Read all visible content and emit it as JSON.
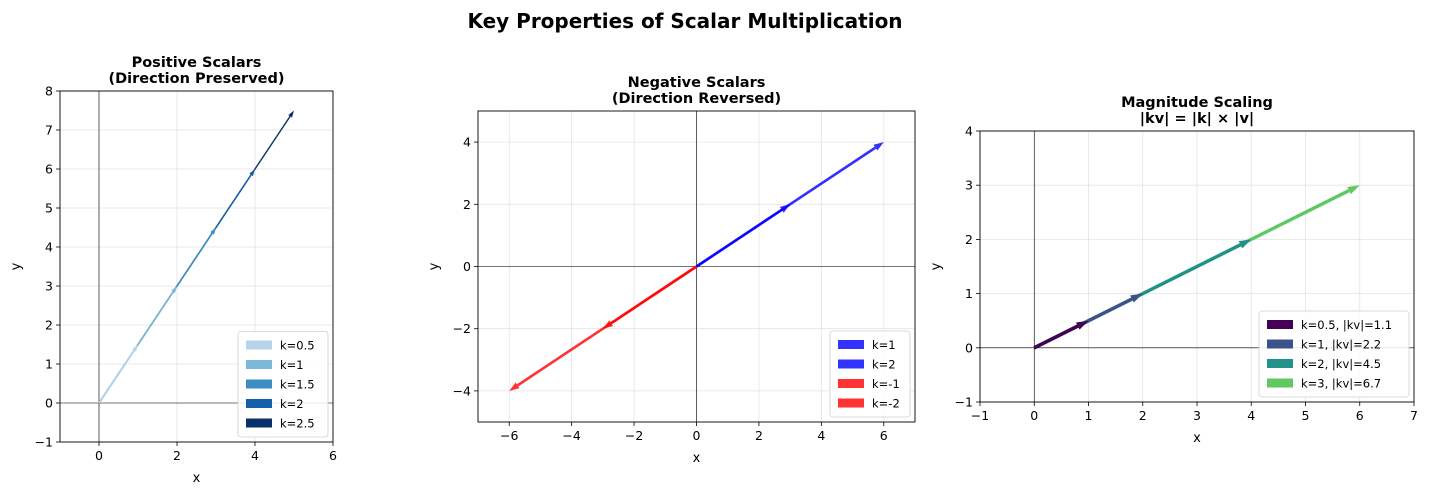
{
  "figure": {
    "suptitle": "Key Properties of Scalar Multiplication"
  },
  "chart_data": [
    {
      "type": "quiver",
      "title": [
        "Positive Scalars",
        "(Direction Preserved)"
      ],
      "xlabel": "x",
      "ylabel": "y",
      "xlim": [
        -1,
        6
      ],
      "ylim": [
        -1,
        8
      ],
      "xticks": [
        0,
        2,
        4,
        6
      ],
      "yticks": [
        -1,
        0,
        1,
        2,
        3,
        4,
        5,
        6,
        7,
        8
      ],
      "grid": true,
      "legend_position": "lower-right",
      "base_vector": [
        2,
        3
      ],
      "series": [
        {
          "name": "k=0.5",
          "k": 0.5,
          "vector": [
            1,
            1.5
          ],
          "color": "#b7d4ea"
        },
        {
          "name": "k=1",
          "k": 1,
          "vector": [
            2,
            3
          ],
          "color": "#7eb8d9"
        },
        {
          "name": "k=1.5",
          "k": 1.5,
          "vector": [
            3,
            4.5
          ],
          "color": "#3e8ec4"
        },
        {
          "name": "k=2",
          "k": 2,
          "vector": [
            4,
            6
          ],
          "color": "#1561a9"
        },
        {
          "name": "k=2.5",
          "k": 2.5,
          "vector": [
            5,
            7.5
          ],
          "color": "#08306b"
        }
      ]
    },
    {
      "type": "quiver",
      "title": [
        "Negative Scalars",
        "(Direction Reversed)"
      ],
      "xlabel": "x",
      "ylabel": "y",
      "xlim": [
        -7,
        7
      ],
      "ylim": [
        -5,
        5
      ],
      "xticks": [
        -6,
        -4,
        -2,
        0,
        2,
        4,
        6
      ],
      "yticks": [
        -4,
        -2,
        0,
        2,
        4
      ],
      "grid": true,
      "legend_position": "lower-right",
      "base_vector": [
        3,
        2
      ],
      "series": [
        {
          "name": "k=1",
          "k": 1,
          "vector": [
            3,
            2
          ],
          "color": "#0000ff"
        },
        {
          "name": "k=2",
          "k": 2,
          "vector": [
            6,
            4
          ],
          "color": "#0000ff"
        },
        {
          "name": "k=-1",
          "k": -1,
          "vector": [
            -3,
            -2
          ],
          "color": "#ff0000"
        },
        {
          "name": "k=-2",
          "k": -2,
          "vector": [
            -6,
            -4
          ],
          "color": "#ff0000"
        }
      ]
    },
    {
      "type": "quiver",
      "title": [
        "Magnitude Scaling",
        "|kv| = |k| × |v|"
      ],
      "xlabel": "x",
      "ylabel": "y",
      "xlim": [
        -1,
        7
      ],
      "ylim": [
        -1,
        4
      ],
      "xticks": [
        -1,
        0,
        1,
        2,
        3,
        4,
        5,
        6,
        7
      ],
      "yticks": [
        -1,
        0,
        1,
        2,
        3,
        4
      ],
      "grid": true,
      "legend_position": "lower-right",
      "base_vector": [
        2,
        1
      ],
      "series": [
        {
          "name": "k=0.5, |kv|=1.1",
          "k": 0.5,
          "vector": [
            1,
            0.5
          ],
          "color": "#440154"
        },
        {
          "name": "k=1, |kv|=2.2",
          "k": 1,
          "vector": [
            2,
            1
          ],
          "color": "#3b528b"
        },
        {
          "name": "k=2, |kv|=4.5",
          "k": 2,
          "vector": [
            4,
            2
          ],
          "color": "#21918c"
        },
        {
          "name": "k=3, |kv|=6.7",
          "k": 3,
          "vector": [
            6,
            3
          ],
          "color": "#5ec962"
        }
      ]
    }
  ]
}
